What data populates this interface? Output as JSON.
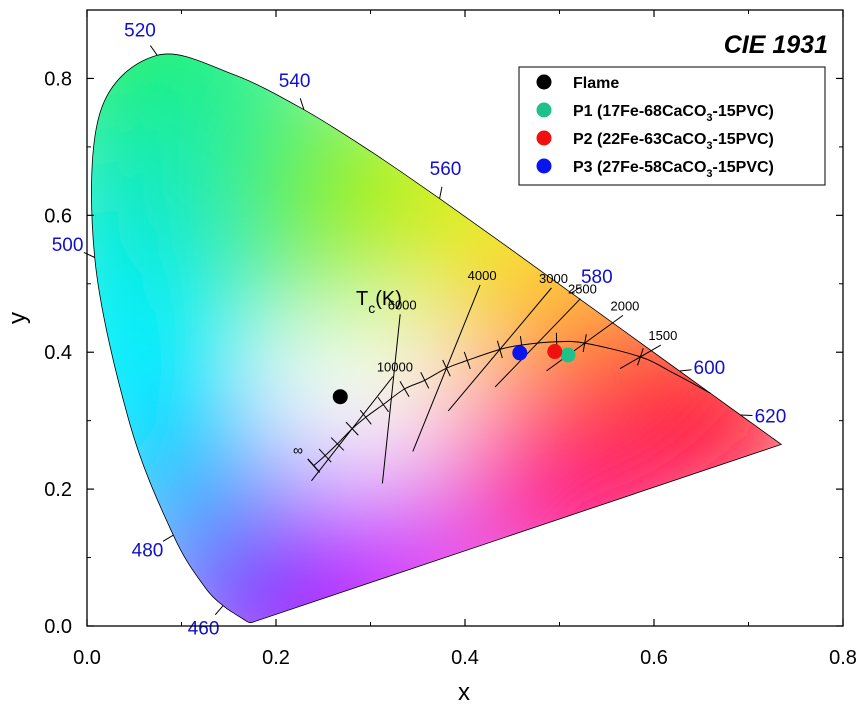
{
  "chart_data": {
    "type": "scatter",
    "title": "CIE 1931",
    "xlabel": "x",
    "ylabel": "y",
    "xlim": [
      0.0,
      0.8
    ],
    "ylim": [
      0.0,
      0.9
    ],
    "x_ticks": [
      0.0,
      0.2,
      0.4,
      0.6,
      0.8
    ],
    "x_tick_labels": [
      "0.0",
      "0.2",
      "0.4",
      "0.6",
      "0.8"
    ],
    "y_ticks": [
      0.0,
      0.2,
      0.4,
      0.6,
      0.8
    ],
    "y_tick_labels": [
      "0.0",
      "0.2",
      "0.4",
      "0.6",
      "0.8"
    ],
    "spectral_locus": [
      [
        0.1741,
        0.005
      ],
      [
        0.1738,
        0.0049
      ],
      [
        0.173,
        0.0048
      ],
      [
        0.1714,
        0.0051
      ],
      [
        0.1689,
        0.0069
      ],
      [
        0.1644,
        0.0109
      ],
      [
        0.1566,
        0.0177
      ],
      [
        0.144,
        0.0297
      ],
      [
        0.1241,
        0.0578
      ],
      [
        0.0913,
        0.1327
      ],
      [
        0.0454,
        0.295
      ],
      [
        0.0082,
        0.5384
      ],
      [
        0.0139,
        0.7502
      ],
      [
        0.0743,
        0.8338
      ],
      [
        0.1547,
        0.8059
      ],
      [
        0.2296,
        0.7543
      ],
      [
        0.3016,
        0.6923
      ],
      [
        0.3731,
        0.6245
      ],
      [
        0.4441,
        0.5547
      ],
      [
        0.5125,
        0.4866
      ],
      [
        0.5752,
        0.4242
      ],
      [
        0.627,
        0.3725
      ],
      [
        0.6658,
        0.334
      ],
      [
        0.6915,
        0.3083
      ],
      [
        0.7079,
        0.292
      ],
      [
        0.719,
        0.2809
      ],
      [
        0.726,
        0.274
      ],
      [
        0.73,
        0.27
      ],
      [
        0.7347,
        0.2653
      ]
    ],
    "wavelength_labels": [
      {
        "text": "460",
        "x": 0.144,
        "y": 0.0297
      },
      {
        "text": "480",
        "x": 0.0913,
        "y": 0.1327
      },
      {
        "text": "500",
        "x": 0.0082,
        "y": 0.5384
      },
      {
        "text": "520",
        "x": 0.0743,
        "y": 0.8338
      },
      {
        "text": "540",
        "x": 0.2296,
        "y": 0.7543
      },
      {
        "text": "560",
        "x": 0.3731,
        "y": 0.6245
      },
      {
        "text": "580",
        "x": 0.5125,
        "y": 0.4866
      },
      {
        "text": "600",
        "x": 0.627,
        "y": 0.3725
      },
      {
        "text": "620",
        "x": 0.6915,
        "y": 0.3083
      }
    ],
    "planckian_locus": [
      [
        0.2399,
        0.2342
      ],
      [
        0.252,
        0.249
      ],
      [
        0.265,
        0.266
      ],
      [
        0.2806,
        0.2883
      ],
      [
        0.295,
        0.305
      ],
      [
        0.3135,
        0.3236
      ],
      [
        0.336,
        0.3463
      ],
      [
        0.3574,
        0.359
      ],
      [
        0.3804,
        0.3767
      ],
      [
        0.4024,
        0.388
      ],
      [
        0.4369,
        0.4041
      ],
      [
        0.4599,
        0.4106
      ],
      [
        0.497,
        0.4152
      ],
      [
        0.5267,
        0.4133
      ],
      [
        0.5856,
        0.3932
      ],
      [
        0.62,
        0.37
      ],
      [
        0.66,
        0.34
      ]
    ],
    "cct_label_title": "Tc(K)",
    "cct_title_main": "T",
    "cct_title_sub": "c",
    "cct_title_rest": "(K)",
    "isotherms": [
      {
        "label": "10000",
        "x": 0.2806,
        "y": 0.2883,
        "angle": 52,
        "len": 0.14
      },
      {
        "label": "6000",
        "x": 0.322,
        "y": 0.3318,
        "angle": 84,
        "len": 0.18
      },
      {
        "label": "4000",
        "x": 0.3804,
        "y": 0.3767,
        "angle": 68,
        "len": 0.19
      },
      {
        "label": "3000",
        "x": 0.4369,
        "y": 0.4041,
        "angle": 50,
        "len": 0.17
      },
      {
        "label": "2500",
        "x": 0.477,
        "y": 0.4137,
        "angle": 46,
        "len": 0.13
      },
      {
        "label": "2000",
        "x": 0.5267,
        "y": 0.4133,
        "angle": 36,
        "len": 0.1
      },
      {
        "label": "1500",
        "x": 0.5856,
        "y": 0.3932,
        "angle": 30,
        "len": 0.05
      }
    ],
    "infinity_label": "∞",
    "series": [
      {
        "name": "Flame",
        "label_parts": [
          "Flame",
          "",
          ""
        ],
        "color": "#000000",
        "x": 0.268,
        "y": 0.335
      },
      {
        "name": "P1 (17Fe-68CaCO3-15PVC)",
        "label_parts": [
          "P1 (17Fe-68CaCO",
          "3",
          "-15PVC)"
        ],
        "color": "#1fc08a",
        "x": 0.509,
        "y": 0.396
      },
      {
        "name": "P2 (22Fe-63CaCO3-15PVC)",
        "label_parts": [
          "P2 (22Fe-63CaCO",
          "3",
          "-15PVC)"
        ],
        "color": "#f01010",
        "x": 0.495,
        "y": 0.401
      },
      {
        "name": "P3 (27Fe-58CaCO3-15PVC)",
        "label_parts": [
          "P3 (27Fe-58CaCO",
          "3",
          "-15PVC)"
        ],
        "color": "#0a14ee",
        "x": 0.458,
        "y": 0.399
      }
    ],
    "legend_position": "top-right",
    "wavelength_label_color": "#1010cc"
  }
}
